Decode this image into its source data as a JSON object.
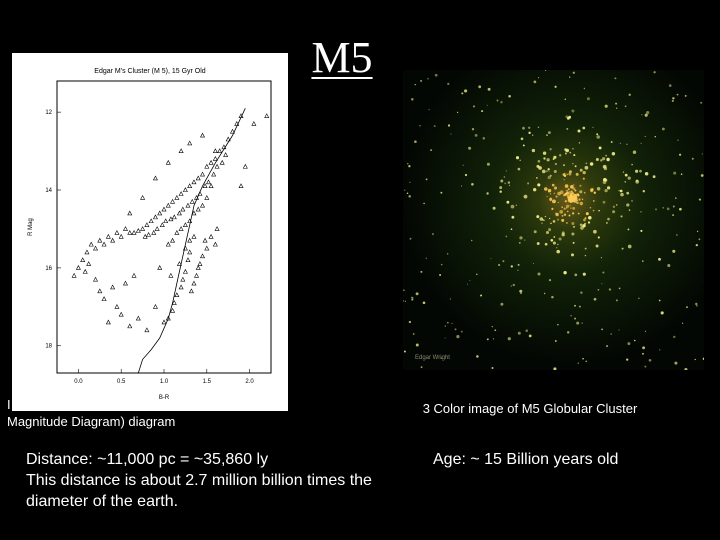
{
  "slide": {
    "title": "M5",
    "left_caption_line1": "I",
    "left_caption_line2": "Magnitude Diagram) diagram",
    "photo_caption": "3 Color image of M5 Globular Cluster",
    "photo_watermark": "Edgar Wright",
    "distance_line1": "Distance: ~11,000 pc = ~35,860 ly",
    "distance_line2": "This distance is about 2.7 million billion times the",
    "distance_line3": "diameter of the earth.",
    "age": "Age: ~ 15 Billion years old"
  },
  "chart_data": {
    "type": "scatter",
    "title": "Edgar M's Cluster (M 5), 15 Gyr Old",
    "xlabel": "B-R",
    "ylabel": "R Mag",
    "xlim": [
      -0.25,
      2.25
    ],
    "ylim": [
      18.7,
      11.2
    ],
    "y_inverted": true,
    "xticks": [
      "0.0",
      "0.5",
      "1.0",
      "1.5",
      "2.0"
    ],
    "yticks": [
      "12",
      "14",
      "16",
      "18"
    ],
    "marker": "open-triangle",
    "series": [
      {
        "marker": "triangle",
        "points": [
          [
            1.9,
            12.1
          ],
          [
            1.85,
            12.3
          ],
          [
            1.8,
            12.5
          ],
          [
            1.75,
            12.7
          ],
          [
            1.7,
            12.9
          ],
          [
            1.65,
            13.0
          ],
          [
            1.6,
            13.2
          ],
          [
            1.55,
            13.3
          ],
          [
            1.5,
            13.4
          ],
          [
            1.45,
            13.6
          ],
          [
            1.4,
            13.7
          ],
          [
            1.35,
            13.8
          ],
          [
            1.3,
            13.9
          ],
          [
            1.25,
            14.0
          ],
          [
            1.2,
            14.1
          ],
          [
            1.15,
            14.2
          ],
          [
            1.1,
            14.3
          ],
          [
            1.05,
            14.4
          ],
          [
            1.0,
            14.5
          ],
          [
            0.95,
            14.6
          ],
          [
            0.9,
            14.7
          ],
          [
            0.85,
            14.8
          ],
          [
            0.8,
            14.9
          ],
          [
            0.75,
            15.0
          ],
          [
            0.7,
            15.05
          ],
          [
            0.65,
            15.1
          ],
          [
            1.72,
            13.1
          ],
          [
            1.62,
            13.4
          ],
          [
            1.58,
            13.6
          ],
          [
            1.52,
            13.8
          ],
          [
            1.48,
            13.9
          ],
          [
            1.42,
            14.1
          ],
          [
            1.38,
            14.2
          ],
          [
            1.33,
            14.3
          ],
          [
            1.28,
            14.4
          ],
          [
            1.22,
            14.5
          ],
          [
            1.18,
            14.6
          ],
          [
            1.12,
            14.7
          ],
          [
            1.08,
            14.75
          ],
          [
            1.02,
            14.8
          ],
          [
            0.98,
            14.9
          ],
          [
            0.92,
            15.0
          ],
          [
            0.88,
            15.1
          ],
          [
            0.82,
            15.15
          ],
          [
            0.78,
            15.2
          ],
          [
            1.68,
            13.3
          ],
          [
            1.6,
            13.0
          ],
          [
            1.55,
            13.9
          ],
          [
            1.5,
            14.2
          ],
          [
            1.45,
            14.4
          ],
          [
            1.4,
            14.5
          ],
          [
            1.35,
            14.6
          ],
          [
            1.3,
            14.8
          ],
          [
            1.25,
            14.9
          ],
          [
            1.2,
            15.0
          ],
          [
            1.15,
            15.1
          ],
          [
            1.1,
            15.3
          ],
          [
            1.05,
            15.4
          ],
          [
            1.5,
            15.5
          ],
          [
            1.45,
            15.7
          ],
          [
            1.42,
            15.9
          ],
          [
            1.4,
            16.0
          ],
          [
            1.38,
            16.2
          ],
          [
            1.35,
            16.4
          ],
          [
            1.32,
            16.6
          ],
          [
            1.3,
            15.6
          ],
          [
            1.28,
            15.8
          ],
          [
            1.25,
            16.1
          ],
          [
            1.22,
            16.3
          ],
          [
            1.2,
            16.5
          ],
          [
            1.18,
            15.9
          ],
          [
            1.15,
            16.7
          ],
          [
            1.12,
            16.9
          ],
          [
            1.1,
            17.1
          ],
          [
            1.08,
            16.2
          ],
          [
            1.05,
            17.3
          ],
          [
            1.55,
            15.2
          ],
          [
            1.6,
            15.4
          ],
          [
            1.62,
            15.0
          ],
          [
            1.48,
            15.3
          ],
          [
            1.35,
            15.2
          ],
          [
            1.3,
            15.3
          ],
          [
            1.25,
            15.5
          ],
          [
            0.1,
            15.6
          ],
          [
            0.15,
            15.4
          ],
          [
            0.2,
            15.5
          ],
          [
            0.25,
            15.3
          ],
          [
            0.3,
            15.4
          ],
          [
            0.35,
            15.2
          ],
          [
            0.4,
            15.3
          ],
          [
            0.45,
            15.1
          ],
          [
            0.5,
            15.2
          ],
          [
            0.55,
            15.0
          ],
          [
            0.6,
            15.1
          ],
          [
            0.05,
            15.8
          ],
          [
            0.0,
            16.0
          ],
          [
            -0.05,
            16.2
          ],
          [
            0.08,
            16.1
          ],
          [
            0.12,
            15.9
          ],
          [
            0.2,
            16.3
          ],
          [
            0.3,
            16.8
          ],
          [
            0.45,
            17.0
          ],
          [
            0.5,
            17.2
          ],
          [
            0.6,
            17.5
          ],
          [
            0.7,
            17.3
          ],
          [
            0.8,
            17.6
          ],
          [
            0.4,
            16.5
          ],
          [
            0.25,
            16.6
          ],
          [
            0.55,
            16.4
          ],
          [
            0.65,
            16.2
          ],
          [
            0.9,
            17.0
          ],
          [
            1.0,
            17.4
          ],
          [
            0.35,
            17.4
          ],
          [
            0.9,
            13.7
          ],
          [
            1.05,
            13.3
          ],
          [
            1.2,
            13.0
          ],
          [
            1.3,
            12.8
          ],
          [
            1.45,
            12.6
          ],
          [
            2.05,
            12.3
          ],
          [
            2.2,
            12.1
          ],
          [
            1.95,
            13.4
          ],
          [
            0.75,
            14.2
          ],
          [
            0.6,
            14.6
          ],
          [
            1.9,
            13.9
          ],
          [
            0.95,
            16.0
          ]
        ]
      }
    ],
    "line": {
      "name": "isochrone",
      "points": [
        [
          1.95,
          11.9
        ],
        [
          1.8,
          12.6
        ],
        [
          1.6,
          13.3
        ],
        [
          1.45,
          13.9
        ],
        [
          1.35,
          14.4
        ],
        [
          1.3,
          14.9
        ],
        [
          1.25,
          15.4
        ],
        [
          1.2,
          15.9
        ],
        [
          1.15,
          16.4
        ],
        [
          1.1,
          16.9
        ],
        [
          1.05,
          17.3
        ],
        [
          0.95,
          17.8
        ],
        [
          0.85,
          18.1
        ],
        [
          0.75,
          18.35
        ],
        [
          0.7,
          18.7
        ]
      ]
    }
  },
  "photo": {
    "sky_color": "#0a1a06",
    "core_color": "#ffcc55",
    "star_color": "#f4f08a"
  }
}
